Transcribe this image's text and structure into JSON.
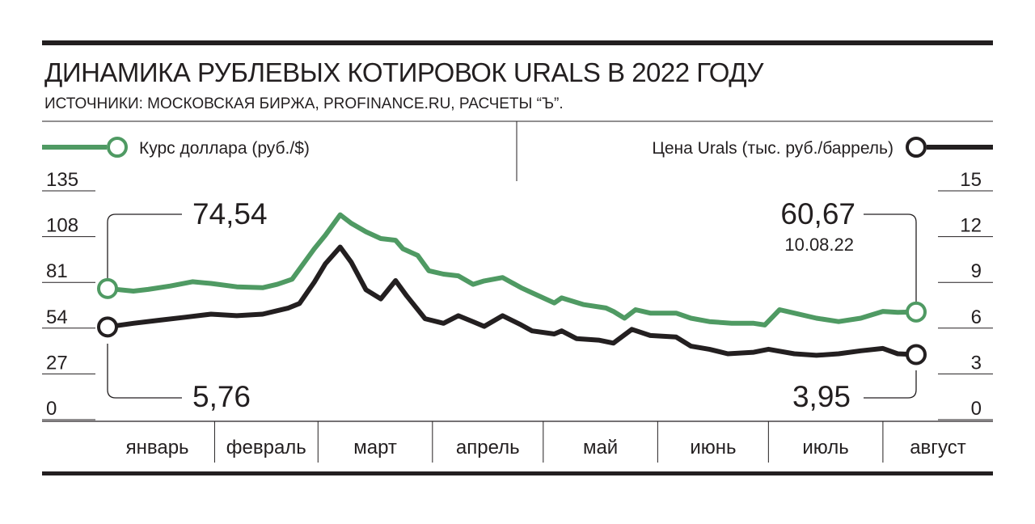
{
  "header": {
    "title": "ДИНАМИКА РУБЛЕВЫХ КОТИРОВОК URALS В 2022 ГОДУ",
    "source": "ИСТОЧНИКИ: МОСКОВСКАЯ БИРЖА, PROFINANCE.RU, РАСЧЕТЫ “Ъ”."
  },
  "colors": {
    "usd": "#4f9a63",
    "urals": "#231f20",
    "rule": "#231f20"
  },
  "chart_data": {
    "type": "line",
    "months": [
      "январь",
      "февраль",
      "март",
      "апрель",
      "май",
      "июнь",
      "июль",
      "август"
    ],
    "x_range": [
      "2022-01-01",
      "2022-08-14"
    ],
    "y_left": {
      "label": "Курс доллара (руб./$)",
      "ticks": [
        135,
        108,
        81,
        54,
        27,
        0
      ],
      "range": [
        0,
        135
      ]
    },
    "y_right": {
      "label": "Цена Urals (тыс. руб./баррель)",
      "ticks": [
        15,
        12,
        9,
        6,
        3,
        0
      ],
      "range": [
        0,
        15
      ]
    },
    "legend": {
      "left": "Курс доллара (руб./$)",
      "right": "Цена Urals (тыс. руб./баррель)"
    },
    "annotations": {
      "usd_start": "74,54",
      "urals_start": "5,76",
      "usd_end": "60,67",
      "usd_end_date": "10.08.22",
      "urals_end": "3,95"
    },
    "series": [
      {
        "name": "Курс доллара (руб./$)",
        "axis": "left",
        "points": [
          [
            "2022-01-03",
            74.5
          ],
          [
            "2022-01-10",
            73.0
          ],
          [
            "2022-01-14",
            74.0
          ],
          [
            "2022-01-20",
            76.0
          ],
          [
            "2022-01-26",
            78.5
          ],
          [
            "2022-01-31",
            77.5
          ],
          [
            "2022-02-07",
            75.5
          ],
          [
            "2022-02-14",
            75.0
          ],
          [
            "2022-02-18",
            77.0
          ],
          [
            "2022-02-22",
            80.0
          ],
          [
            "2022-02-24",
            86.0
          ],
          [
            "2022-02-28",
            98.0
          ],
          [
            "2022-03-03",
            106.0
          ],
          [
            "2022-03-07",
            118.0
          ],
          [
            "2022-03-10",
            113.0
          ],
          [
            "2022-03-14",
            108.0
          ],
          [
            "2022-03-18",
            104.0
          ],
          [
            "2022-03-22",
            103.0
          ],
          [
            "2022-03-24",
            98.0
          ],
          [
            "2022-03-28",
            94.0
          ],
          [
            "2022-03-31",
            85.0
          ],
          [
            "2022-04-04",
            83.0
          ],
          [
            "2022-04-08",
            82.0
          ],
          [
            "2022-04-12",
            77.0
          ],
          [
            "2022-04-15",
            79.0
          ],
          [
            "2022-04-20",
            81.0
          ],
          [
            "2022-04-25",
            75.0
          ],
          [
            "2022-04-28",
            72.0
          ],
          [
            "2022-05-04",
            66.0
          ],
          [
            "2022-05-06",
            69.0
          ],
          [
            "2022-05-12",
            65.0
          ],
          [
            "2022-05-18",
            63.0
          ],
          [
            "2022-05-20",
            61.0
          ],
          [
            "2022-05-23",
            57.0
          ],
          [
            "2022-05-26",
            62.0
          ],
          [
            "2022-05-30",
            60.0
          ],
          [
            "2022-06-06",
            60.0
          ],
          [
            "2022-06-10",
            57.0
          ],
          [
            "2022-06-15",
            55.0
          ],
          [
            "2022-06-21",
            54.0
          ],
          [
            "2022-06-27",
            54.0
          ],
          [
            "2022-06-30",
            53.0
          ],
          [
            "2022-07-04",
            62.0
          ],
          [
            "2022-07-08",
            60.0
          ],
          [
            "2022-07-14",
            57.0
          ],
          [
            "2022-07-20",
            55.0
          ],
          [
            "2022-07-26",
            57.0
          ],
          [
            "2022-08-01",
            61.0
          ],
          [
            "2022-08-05",
            60.5
          ],
          [
            "2022-08-10",
            60.67
          ]
        ]
      },
      {
        "name": "Цена Urals (тыс. руб./баррель)",
        "axis": "right",
        "points": [
          [
            "2022-01-03",
            5.76
          ],
          [
            "2022-01-10",
            6.0
          ],
          [
            "2022-01-17",
            6.2
          ],
          [
            "2022-01-24",
            6.4
          ],
          [
            "2022-01-31",
            6.6
          ],
          [
            "2022-02-07",
            6.5
          ],
          [
            "2022-02-14",
            6.6
          ],
          [
            "2022-02-21",
            7.0
          ],
          [
            "2022-02-24",
            7.3
          ],
          [
            "2022-02-28",
            8.7
          ],
          [
            "2022-03-03",
            9.9
          ],
          [
            "2022-03-07",
            11.0
          ],
          [
            "2022-03-10",
            10.0
          ],
          [
            "2022-03-14",
            8.2
          ],
          [
            "2022-03-18",
            7.6
          ],
          [
            "2022-03-22",
            8.8
          ],
          [
            "2022-03-25",
            7.8
          ],
          [
            "2022-03-30",
            6.3
          ],
          [
            "2022-04-04",
            6.0
          ],
          [
            "2022-04-08",
            6.5
          ],
          [
            "2022-04-12",
            6.1
          ],
          [
            "2022-04-15",
            5.8
          ],
          [
            "2022-04-20",
            6.5
          ],
          [
            "2022-04-25",
            5.9
          ],
          [
            "2022-04-28",
            5.5
          ],
          [
            "2022-05-04",
            5.3
          ],
          [
            "2022-05-06",
            5.5
          ],
          [
            "2022-05-10",
            5.0
          ],
          [
            "2022-05-16",
            4.9
          ],
          [
            "2022-05-20",
            4.7
          ],
          [
            "2022-05-25",
            5.6
          ],
          [
            "2022-05-30",
            5.2
          ],
          [
            "2022-06-06",
            5.1
          ],
          [
            "2022-06-10",
            4.5
          ],
          [
            "2022-06-15",
            4.3
          ],
          [
            "2022-06-20",
            4.0
          ],
          [
            "2022-06-27",
            4.1
          ],
          [
            "2022-07-01",
            4.3
          ],
          [
            "2022-07-08",
            4.0
          ],
          [
            "2022-07-14",
            3.9
          ],
          [
            "2022-07-20",
            4.0
          ],
          [
            "2022-07-26",
            4.2
          ],
          [
            "2022-08-01",
            4.35
          ],
          [
            "2022-08-05",
            4.0
          ],
          [
            "2022-08-10",
            3.95
          ]
        ]
      }
    ]
  }
}
